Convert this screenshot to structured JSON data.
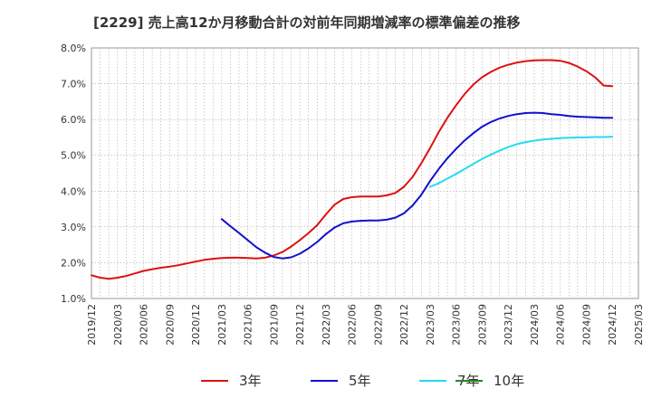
{
  "chart_data": {
    "type": "line",
    "title": "[2229]  売上高12か月移動合計の対前年同期増減率の標準偏差の推移",
    "xlabel": "",
    "ylabel": "",
    "x_ticks": [
      "2019/12",
      "2020/03",
      "2020/06",
      "2020/09",
      "2020/12",
      "2021/03",
      "2021/06",
      "2021/09",
      "2021/12",
      "2022/03",
      "2022/06",
      "2022/09",
      "2022/12",
      "2023/03",
      "2023/06",
      "2023/09",
      "2023/12",
      "2024/03",
      "2024/06",
      "2024/09",
      "2024/12",
      "2025/03"
    ],
    "y_ticks": [
      "1.0%",
      "2.0%",
      "3.0%",
      "4.0%",
      "5.0%",
      "6.0%",
      "7.0%",
      "8.0%"
    ],
    "ylim": [
      1.0,
      8.0
    ],
    "xlim": [
      "2019/12",
      "2025/03"
    ],
    "grid": true,
    "legend_position": "bottom",
    "series": [
      {
        "name": "3年",
        "color": "#dd1111",
        "x": [
          "2019/12",
          "2020/01",
          "2020/02",
          "2020/03",
          "2020/04",
          "2020/05",
          "2020/06",
          "2020/07",
          "2020/08",
          "2020/09",
          "2020/10",
          "2020/11",
          "2020/12",
          "2021/01",
          "2021/02",
          "2021/03",
          "2021/04",
          "2021/05",
          "2021/06",
          "2021/07",
          "2021/08",
          "2021/09",
          "2021/10",
          "2021/11",
          "2021/12",
          "2022/01",
          "2022/02",
          "2022/03",
          "2022/04",
          "2022/05",
          "2022/06",
          "2022/07",
          "2022/08",
          "2022/09",
          "2022/10",
          "2022/11",
          "2022/12",
          "2023/01",
          "2023/02",
          "2023/03",
          "2023/04",
          "2023/05",
          "2023/06",
          "2023/07",
          "2023/08",
          "2023/09",
          "2023/10",
          "2023/11",
          "2023/12",
          "2024/01",
          "2024/02",
          "2024/03",
          "2024/04",
          "2024/05",
          "2024/06",
          "2024/07",
          "2024/08",
          "2024/09",
          "2024/10",
          "2024/11",
          "2024/12"
        ],
        "values": [
          1.65,
          1.58,
          1.55,
          1.58,
          1.63,
          1.7,
          1.77,
          1.82,
          1.86,
          1.89,
          1.93,
          1.98,
          2.03,
          2.08,
          2.11,
          2.13,
          2.14,
          2.14,
          2.13,
          2.12,
          2.14,
          2.2,
          2.3,
          2.45,
          2.63,
          2.83,
          3.05,
          3.35,
          3.62,
          3.78,
          3.83,
          3.85,
          3.85,
          3.85,
          3.88,
          3.95,
          4.12,
          4.4,
          4.78,
          5.2,
          5.65,
          6.05,
          6.4,
          6.72,
          6.98,
          7.18,
          7.33,
          7.45,
          7.53,
          7.59,
          7.63,
          7.65,
          7.66,
          7.66,
          7.64,
          7.58,
          7.48,
          7.35,
          7.18,
          6.95,
          6.93
        ]
      },
      {
        "name": "5年",
        "color": "#1111cc",
        "x": [
          "2021/03",
          "2021/04",
          "2021/05",
          "2021/06",
          "2021/07",
          "2021/08",
          "2021/09",
          "2021/10",
          "2021/11",
          "2021/12",
          "2022/01",
          "2022/02",
          "2022/03",
          "2022/04",
          "2022/05",
          "2022/06",
          "2022/07",
          "2022/08",
          "2022/09",
          "2022/10",
          "2022/11",
          "2022/12",
          "2023/01",
          "2023/02",
          "2023/03",
          "2023/04",
          "2023/05",
          "2023/06",
          "2023/07",
          "2023/08",
          "2023/09",
          "2023/10",
          "2023/11",
          "2023/12",
          "2024/01",
          "2024/02",
          "2024/03",
          "2024/04",
          "2024/05",
          "2024/06",
          "2024/07",
          "2024/08",
          "2024/09",
          "2024/10",
          "2024/11",
          "2024/12"
        ],
        "values": [
          3.22,
          3.02,
          2.83,
          2.63,
          2.43,
          2.28,
          2.16,
          2.12,
          2.15,
          2.25,
          2.4,
          2.58,
          2.8,
          2.98,
          3.1,
          3.15,
          3.17,
          3.18,
          3.18,
          3.2,
          3.26,
          3.38,
          3.6,
          3.9,
          4.28,
          4.62,
          4.92,
          5.18,
          5.42,
          5.62,
          5.8,
          5.93,
          6.03,
          6.1,
          6.15,
          6.18,
          6.19,
          6.18,
          6.15,
          6.13,
          6.1,
          6.08,
          6.07,
          6.06,
          6.05,
          6.05
        ]
      },
      {
        "name": "7年",
        "color": "#22ddee",
        "x": [
          "2023/03",
          "2023/04",
          "2023/05",
          "2023/06",
          "2023/07",
          "2023/08",
          "2023/09",
          "2023/10",
          "2023/11",
          "2023/12",
          "2024/01",
          "2024/02",
          "2024/03",
          "2024/04",
          "2024/05",
          "2024/06",
          "2024/07",
          "2024/08",
          "2024/09",
          "2024/10",
          "2024/11",
          "2024/12"
        ],
        "values": [
          4.12,
          4.22,
          4.35,
          4.48,
          4.62,
          4.76,
          4.9,
          5.02,
          5.13,
          5.23,
          5.31,
          5.37,
          5.41,
          5.44,
          5.46,
          5.48,
          5.49,
          5.5,
          5.5,
          5.51,
          5.51,
          5.52
        ]
      },
      {
        "name": "10年",
        "color": "#228822",
        "x": [],
        "values": []
      }
    ]
  }
}
